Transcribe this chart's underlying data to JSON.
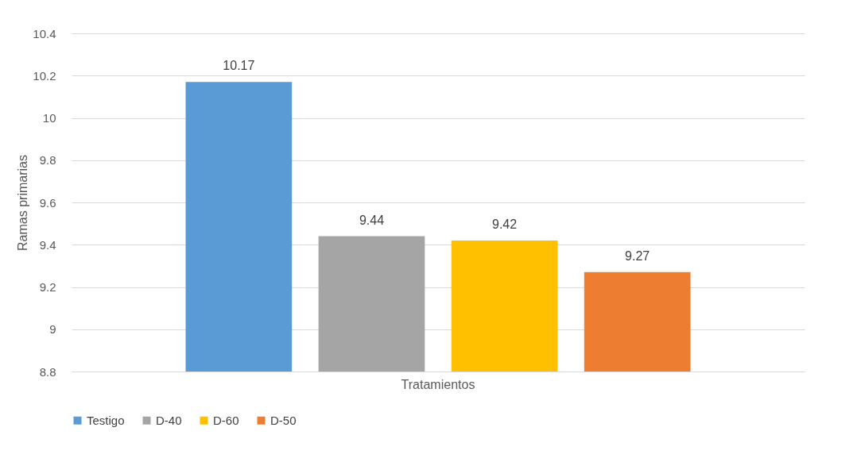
{
  "chart_data": {
    "type": "bar",
    "ylabel": "Ramas primarias",
    "categories": [
      "Tratamientos"
    ],
    "series": [
      {
        "name": "Testigo",
        "color": "#5b9bd5",
        "values": [
          10.17
        ]
      },
      {
        "name": "D-40",
        "color": "#a5a5a5",
        "values": [
          9.44
        ]
      },
      {
        "name": "D-60",
        "color": "#ffc000",
        "values": [
          9.42
        ]
      },
      {
        "name": "D-50",
        "color": "#ed7d31",
        "values": [
          9.27
        ]
      }
    ],
    "ylim": [
      8.8,
      10.4
    ],
    "yticks": [
      8.8,
      9,
      9.2,
      9.4,
      9.6,
      9.8,
      10,
      10.2,
      10.4
    ],
    "grid": "y",
    "legend": "bottom",
    "data_labels": true
  }
}
